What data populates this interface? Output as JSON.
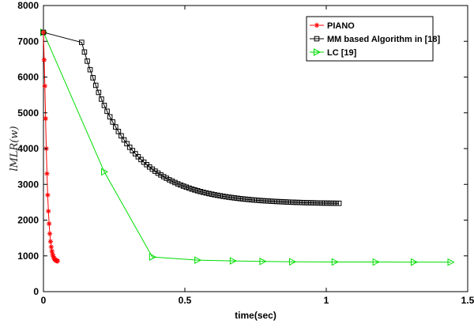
{
  "chart_data": {
    "type": "line",
    "xlabel": "time(sec)",
    "ylabel": "l_MLR(w)",
    "ylabel_display": "lMLR(w)",
    "xlim": [
      0,
      1.5
    ],
    "ylim": [
      0,
      8000
    ],
    "xticks": [
      "0",
      "0.5",
      "1",
      "1.5"
    ],
    "yticks": [
      "0",
      "1000",
      "2000",
      "3000",
      "4000",
      "5000",
      "6000",
      "7000",
      "8000"
    ],
    "grid": false,
    "legend_position": "top-right",
    "series": [
      {
        "name": "PIANO",
        "color": "#ff0000",
        "marker": "star",
        "x": [
          0.0,
          0.0025,
          0.005,
          0.0075,
          0.01,
          0.0125,
          0.015,
          0.0175,
          0.02,
          0.0225,
          0.025,
          0.0275,
          0.03,
          0.0325,
          0.035,
          0.0375,
          0.04,
          0.0425,
          0.045,
          0.0475,
          0.05
        ],
        "y": [
          7250,
          6480,
          5750,
          4840,
          4000,
          3300,
          2700,
          2250,
          1900,
          1620,
          1400,
          1250,
          1130,
          1040,
          980,
          935,
          905,
          885,
          870,
          862,
          855
        ]
      },
      {
        "name": "MM based Algorithm in [18]",
        "color": "#000000",
        "marker": "square",
        "x": [
          0.0,
          0.135,
          0.145,
          0.155,
          0.165,
          0.175,
          0.185,
          0.195,
          0.205,
          0.215,
          0.225,
          0.235,
          0.245,
          0.255,
          0.265,
          0.275,
          0.285,
          0.295,
          0.305,
          0.315,
          0.325,
          0.335,
          0.345,
          0.355,
          0.365,
          0.375,
          0.385,
          0.395,
          0.405,
          0.415,
          0.425,
          0.435,
          0.445,
          0.455,
          0.465,
          0.475,
          0.485,
          0.495,
          0.505,
          0.515,
          0.525,
          0.535,
          0.545,
          0.555,
          0.565,
          0.575,
          0.585,
          0.595,
          0.605,
          0.615,
          0.625,
          0.635,
          0.645,
          0.655,
          0.665,
          0.675,
          0.685,
          0.695,
          0.705,
          0.715,
          0.725,
          0.735,
          0.745,
          0.755,
          0.765,
          0.775,
          0.785,
          0.795,
          0.805,
          0.815,
          0.825,
          0.835,
          0.845,
          0.855,
          0.865,
          0.875,
          0.885,
          0.895,
          0.905,
          0.915,
          0.925,
          0.935,
          0.945,
          0.955,
          0.965,
          0.975,
          0.985,
          0.995,
          1.005,
          1.015,
          1.025,
          1.035,
          1.045
        ],
        "y": [
          7250,
          6970,
          6700,
          6445,
          6206,
          5980,
          5769,
          5570,
          5383,
          5208,
          5043,
          4888,
          4743,
          4606,
          4478,
          4357,
          4244,
          4137,
          4037,
          3943,
          3855,
          3772,
          3694,
          3620,
          3551,
          3486,
          3425,
          3368,
          3314,
          3263,
          3215,
          3170,
          3128,
          3088,
          3051,
          3015,
          2982,
          2951,
          2922,
          2894,
          2868,
          2844,
          2821,
          2799,
          2779,
          2760,
          2742,
          2725,
          2709,
          2694,
          2680,
          2667,
          2654,
          2642,
          2631,
          2621,
          2611,
          2601,
          2593,
          2584,
          2577,
          2569,
          2562,
          2556,
          2550,
          2544,
          2539,
          2534,
          2529,
          2524,
          2520,
          2516,
          2512,
          2509,
          2505,
          2502,
          2499,
          2496,
          2494,
          2491,
          2489,
          2487,
          2485,
          2483,
          2481,
          2479,
          2478,
          2476,
          2475,
          2473,
          2472,
          2471,
          2470
        ]
      },
      {
        "name": "LC [19]",
        "color": "#00dd00",
        "marker": "triangle-right",
        "x": [
          0.0,
          0.215,
          0.385,
          0.545,
          0.67,
          0.775,
          0.88,
          1.03,
          1.175,
          1.31,
          1.44
        ],
        "y": [
          7250,
          3350,
          970,
          880,
          860,
          845,
          835,
          830,
          828,
          826,
          825
        ]
      }
    ]
  }
}
